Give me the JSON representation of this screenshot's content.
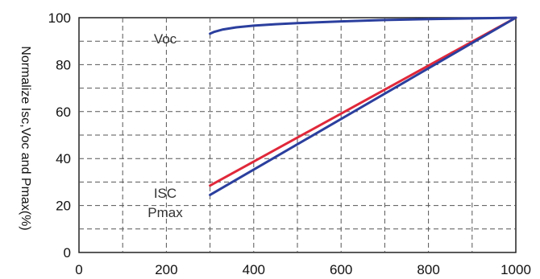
{
  "chart_data": {
    "type": "line",
    "ylabel": "Normalize Isc,Voc and Pmax(%)",
    "xlabel": "",
    "xlim": [
      0,
      1000
    ],
    "ylim": [
      0,
      100
    ],
    "x_ticks": [
      0,
      200,
      400,
      600,
      800,
      1000
    ],
    "y_ticks": [
      0,
      20,
      40,
      60,
      80,
      100
    ],
    "grid": "dashed",
    "annotations": [
      {
        "key": "voc",
        "text": "Voc"
      },
      {
        "key": "isc",
        "text": "ISC"
      },
      {
        "key": "pmax",
        "text": "Pmax"
      }
    ],
    "series": [
      {
        "key": "voc",
        "color": "#2b3f9e",
        "x": [
          300,
          310,
          330,
          360,
          400,
          450,
          500,
          600,
          700,
          800,
          900,
          1000
        ],
        "y": [
          93.2,
          94.0,
          95.0,
          95.9,
          96.6,
          97.2,
          97.7,
          98.4,
          99.0,
          99.4,
          99.7,
          100
        ]
      },
      {
        "key": "isc",
        "color": "#e0283a",
        "x": [
          300,
          1000
        ],
        "y": [
          28.5,
          100
        ]
      },
      {
        "key": "pmax",
        "color": "#2b3f9e",
        "x": [
          300,
          1000
        ],
        "y": [
          24.5,
          100
        ]
      }
    ]
  }
}
